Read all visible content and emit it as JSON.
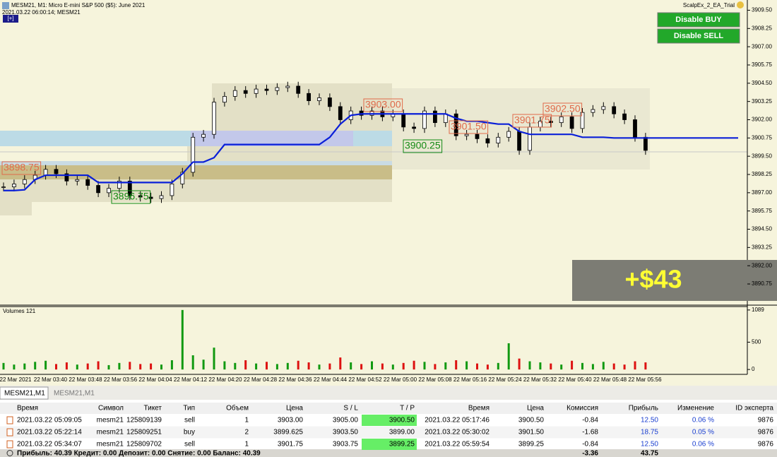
{
  "header": {
    "title": "MESM21, M1:  Micro E-mini S&P 500 ($5): June 2021",
    "time": "2021.03.22 06:00:14; MESM21",
    "toggle": "[+]"
  },
  "expert": "ScalpEx_2_EA_Trial",
  "buttons": [
    "Disable BUY",
    "Disable SELL"
  ],
  "result": "+$43",
  "annotations": [
    "3898.75",
    "3896.75",
    "3903.00",
    "3900.25",
    "3901.50",
    "3901.75",
    "3902.50"
  ],
  "chart_data": {
    "type": "candlestick",
    "ylim": [
      3889.3,
      3910.2
    ],
    "yticks": [
      {
        "value": 3909.5,
        "label": "3909.50"
      },
      {
        "value": 3908.25,
        "label": "3908.25"
      },
      {
        "value": 3907,
        "label": "3907.00"
      },
      {
        "value": 3905.75,
        "label": "3905.75"
      },
      {
        "value": 3904.5,
        "label": "3904.50"
      },
      {
        "value": 3903.25,
        "label": "3903.25"
      },
      {
        "value": 3902,
        "label": "3902.00"
      },
      {
        "value": 3900.75,
        "label": "3900.75"
      },
      {
        "value": 3899.5,
        "label": "3899.50"
      },
      {
        "value": 3898.25,
        "label": "3898.25"
      },
      {
        "value": 3897,
        "label": "3897.00"
      },
      {
        "value": 3895.75,
        "label": "3895.75"
      },
      {
        "value": 3894.5,
        "label": "3894.50"
      },
      {
        "value": 3893.25,
        "label": "3893.25"
      },
      {
        "value": 3892,
        "label": "3892.00"
      },
      {
        "value": 3890.75,
        "label": "3890.75"
      }
    ],
    "time_labels": [
      "22 Mar 2021",
      "22 Mar 03:40",
      "22 Mar 03:48",
      "22 Mar 03:56",
      "22 Mar 04:04",
      "22 Mar 04:12",
      "22 Mar 04:20",
      "22 Mar 04:28",
      "22 Mar 04:36",
      "22 Mar 04:44",
      "22 Mar 04:52",
      "22 Mar 05:00",
      "22 Mar 05:08",
      "22 Mar 05:16",
      "22 Mar 05:24",
      "22 Mar 05:32",
      "22 Mar 05:40",
      "22 Mar 05:48",
      "22 Mar 05:56"
    ],
    "closes": [
      3897.4,
      3897.6,
      3897.9,
      3898.2,
      3898.6,
      3898.3,
      3897.8,
      3897.9,
      3897.5,
      3897.0,
      3897.3,
      3897.8,
      3896.8,
      3896.7,
      3896.6,
      3896.8,
      3897.6,
      3898.4,
      3900.8,
      3901.0,
      3903.2,
      3903.6,
      3904.0,
      3903.8,
      3904.1,
      3904.0,
      3904.2,
      3904.3,
      3903.8,
      3903.3,
      3903.5,
      3902.9,
      3902.0,
      3902.6,
      3902.3,
      3902.6,
      3902.2,
      3902.4,
      3901.5,
      3901.4,
      3902.6,
      3901.8,
      3902.4,
      3900.9,
      3901.0,
      3900.7,
      3900.4,
      3900.8,
      3901.2,
      3899.9,
      3901.5,
      3901.9,
      3901.8,
      3902.2,
      3901.4,
      3902.5,
      3902.7,
      3902.9,
      3902.4,
      3902.0,
      3900.8,
      3899.9
    ],
    "trend": [
      3897.15,
      3897.15,
      3897.2,
      3897.9,
      3898.2,
      3898.2,
      3898.2,
      3898.2,
      3898.2,
      3897.7,
      3897.7,
      3897.7,
      3897.7,
      3897.7,
      3897.7,
      3897.7,
      3897.7,
      3898.3,
      3899.1,
      3899.1,
      3899.4,
      3900.3,
      3900.3,
      3900.3,
      3900.3,
      3900.3,
      3900.3,
      3900.3,
      3900.3,
      3900.3,
      3900.3,
      3900.8,
      3901.7,
      3902.3,
      3902.4,
      3902.4,
      3902.4,
      3902.4,
      3902.4,
      3902.4,
      3902.4,
      3902.4,
      3902.4,
      3902.1,
      3901.9,
      3901.9,
      3901.8,
      3901.7,
      3901.7,
      3901.2,
      3901.0,
      3901.0,
      3901.0,
      3901.0,
      3901.0,
      3900.8,
      3900.8,
      3900.8,
      3900.75,
      3900.75,
      3900.75,
      3900.75
    ],
    "trend_color": "#0a1fd8",
    "volume": {
      "label": "Volumes 121",
      "ylim": [
        -89,
        1152
      ],
      "yticks": [
        1089,
        500,
        0
      ],
      "values": [
        120,
        90,
        110,
        140,
        160,
        100,
        130,
        90,
        110,
        150,
        80,
        120,
        140,
        100,
        110,
        90,
        170,
        1089,
        260,
        180,
        400,
        150,
        120,
        170,
        110,
        140,
        100,
        120,
        160,
        130,
        90,
        110,
        220,
        130,
        100,
        150,
        110,
        90,
        120,
        160,
        140,
        100,
        130,
        170,
        150,
        110,
        90,
        120,
        480,
        200,
        150,
        130,
        110,
        90,
        160,
        120,
        100,
        140,
        110,
        90,
        150,
        130
      ],
      "up_color": "#119911",
      "down_color": "#dd1111"
    }
  },
  "tabs": [
    "MESM21,M1",
    "MESM21,M1"
  ],
  "table": {
    "columns": [
      "Время",
      "Символ",
      "Тикет",
      "Тип",
      "Объем",
      "Цена",
      "S / L",
      "T / P",
      "Время",
      "Цена",
      "Комиссия",
      "Прибыль",
      "Изменение",
      "ID эксперта"
    ],
    "rows": [
      [
        "2021.03.22 05:09:05",
        "mesm21",
        "125809139",
        "sell",
        "1",
        "3903.00",
        "3905.00",
        "3900.50",
        "2021.03.22 05:17:46",
        "3900.50",
        "-0.84",
        "12.50",
        "0.06 %",
        "9876"
      ],
      [
        "2021.03.22 05:22:14",
        "mesm21",
        "125809251",
        "buy",
        "2",
        "3899.625",
        "3903.50",
        "3899.00",
        "2021.03.22 05:30:02",
        "3901.50",
        "-1.68",
        "18.75",
        "0.05 %",
        "9876"
      ],
      [
        "2021.03.22 05:34:07",
        "mesm21",
        "125809702",
        "sell",
        "1",
        "3901.75",
        "3903.75",
        "3899.25",
        "2021.03.22 05:59:54",
        "3899.25",
        "-0.84",
        "12.50",
        "0.06 %",
        "9876"
      ]
    ],
    "footer": {
      "summary": "Прибыль: 40.39  Кредит: 0.00  Депозит: 0.00  Снятие: 0.00  Баланс: 40.39",
      "commission": "-3.36",
      "profit": "43.75"
    }
  }
}
